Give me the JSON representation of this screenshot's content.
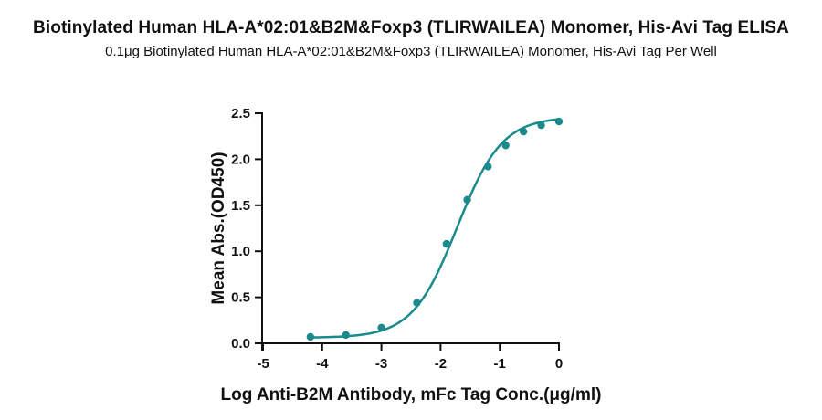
{
  "header": {
    "title": "Biotinylated Human HLA-A*02:01&B2M&Foxp3 (TLIRWAILEA) Monomer, His-Avi Tag ELISA",
    "subtitle": "0.1μg Biotinylated Human HLA-A*02:01&B2M&Foxp3 (TLIRWAILEA) Monomer, His-Avi Tag Per Well"
  },
  "chart_data": {
    "type": "scatter",
    "title": "Biotinylated Human HLA-A*02:01&B2M&Foxp3 (TLIRWAILEA) Monomer, His-Avi Tag ELISA",
    "subtitle": "0.1μg Biotinylated Human HLA-A*02:01&B2M&Foxp3 (TLIRWAILEA) Monomer, His-Avi Tag Per Well",
    "xlabel": "Log Anti-B2M Antibody, mFc Tag Conc.(μg/ml)",
    "ylabel": "Mean Abs.(OD450)",
    "xlim": [
      -5,
      0
    ],
    "ylim": [
      0,
      2.5
    ],
    "xticks": [
      -5,
      -4,
      -3,
      -2,
      -1,
      0
    ],
    "xtick_labels": [
      "-5",
      "-4",
      "-3",
      "-2",
      "-1",
      "0"
    ],
    "yticks": [
      0,
      0.5,
      1.0,
      1.5,
      2.0,
      2.5
    ],
    "ytick_labels": [
      "0.0",
      "0.5",
      "1.0",
      "1.5",
      "2.0",
      "2.5"
    ],
    "grid": false,
    "color": "#1a8a8a",
    "series": [
      {
        "x": [
          -4.2,
          -3.6,
          -3.0,
          -2.4,
          -1.9,
          -1.55,
          -1.2,
          -0.9,
          -0.6,
          -0.3,
          0.0
        ],
        "y": [
          0.07,
          0.09,
          0.17,
          0.44,
          1.08,
          1.56,
          1.92,
          2.15,
          2.3,
          2.37,
          2.41
        ]
      }
    ],
    "fit_curve": {
      "model": "4PL",
      "bottom": 0.06,
      "top": 2.46,
      "logEC50": -1.72,
      "hill": 1.15
    }
  }
}
